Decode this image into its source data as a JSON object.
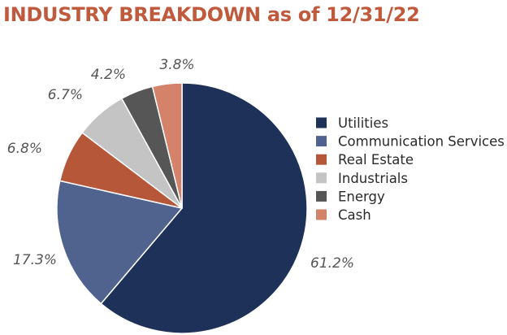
{
  "chart_data": {
    "type": "pie",
    "title": "INDUSTRY BREAKDOWN as of 12/31/22",
    "legend_position": "right",
    "slices": [
      {
        "label": "Utilities",
        "value": 61.2,
        "display": "61.2%",
        "color": "#1e3159"
      },
      {
        "label": "Communication Services",
        "value": 17.3,
        "display": "17.3%",
        "color": "#50638f"
      },
      {
        "label": "Real Estate",
        "value": 6.8,
        "display": "6.8%",
        "color": "#b7573a"
      },
      {
        "label": "Industrials",
        "value": 6.7,
        "display": "6.7%",
        "color": "#c4c4c4"
      },
      {
        "label": "Energy",
        "value": 4.2,
        "display": "4.2%",
        "color": "#565656"
      },
      {
        "label": "Cash",
        "value": 3.8,
        "display": "3.8%",
        "color": "#d4826a"
      }
    ]
  }
}
